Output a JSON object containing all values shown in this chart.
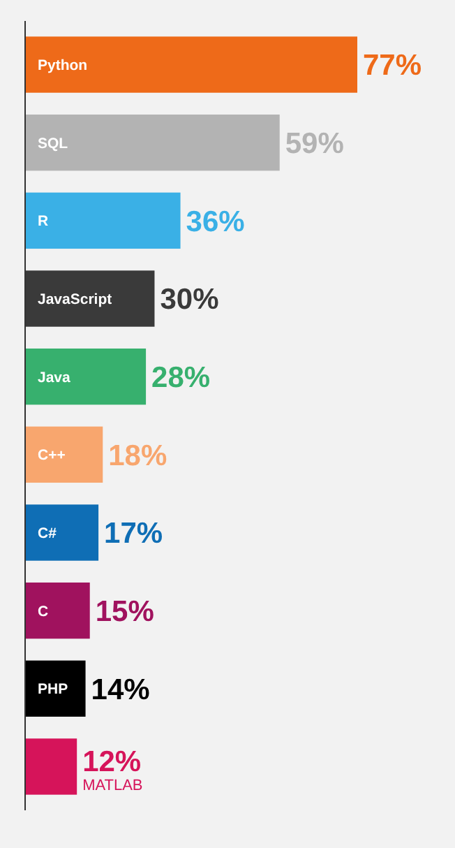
{
  "chart_data": {
    "type": "bar",
    "orientation": "horizontal",
    "categories": [
      "Python",
      "SQL",
      "R",
      "JavaScript",
      "Java",
      "C++",
      "C#",
      "C",
      "PHP",
      "MATLAB"
    ],
    "values": [
      77,
      59,
      36,
      30,
      28,
      18,
      17,
      15,
      14,
      12
    ],
    "colors": [
      "#ee6a19",
      "#b3b3b3",
      "#3ab0e6",
      "#3a3a3a",
      "#37b06e",
      "#f8a66e",
      "#0f6eb5",
      "#a0125e",
      "#000000",
      "#d6145a"
    ],
    "value_labels": [
      "77%",
      "59%",
      "36%",
      "30%",
      "28%",
      "18%",
      "17%",
      "15%",
      "14%",
      "12%"
    ]
  }
}
